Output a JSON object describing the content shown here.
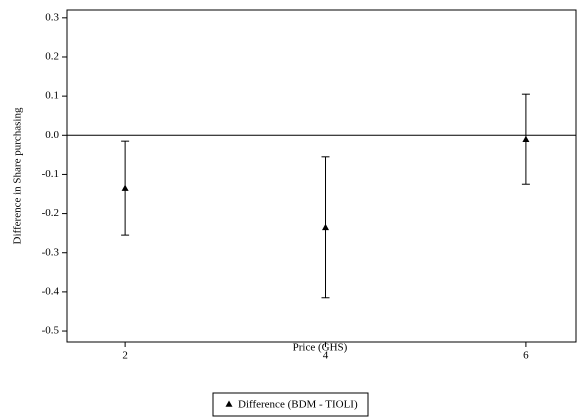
{
  "chart_data": {
    "type": "errorbar",
    "x_label": "Price (GHS)",
    "y_label": "Difference in Share purchasing",
    "series": [
      {
        "name": "Difference (BDM - TIOLI)",
        "color": "#000000",
        "x": [
          2,
          4,
          6
        ],
        "values": [
          -0.135,
          -0.235,
          -0.01
        ],
        "errors": [
          0.12,
          0.18,
          0.115
        ]
      }
    ],
    "xlim": [
      1.42,
      6.5
    ],
    "xticks": [
      2,
      4,
      6
    ],
    "ylim": [
      -0.528,
      0.32
    ],
    "yticks": [
      0.3,
      0.2,
      0.1,
      {
        "value": 0,
        "label": "0.0"
      },
      -0.1,
      -0.2,
      -0.3,
      -0.4,
      -0.5
    ],
    "reference_line": 0,
    "legend": "bottom"
  }
}
